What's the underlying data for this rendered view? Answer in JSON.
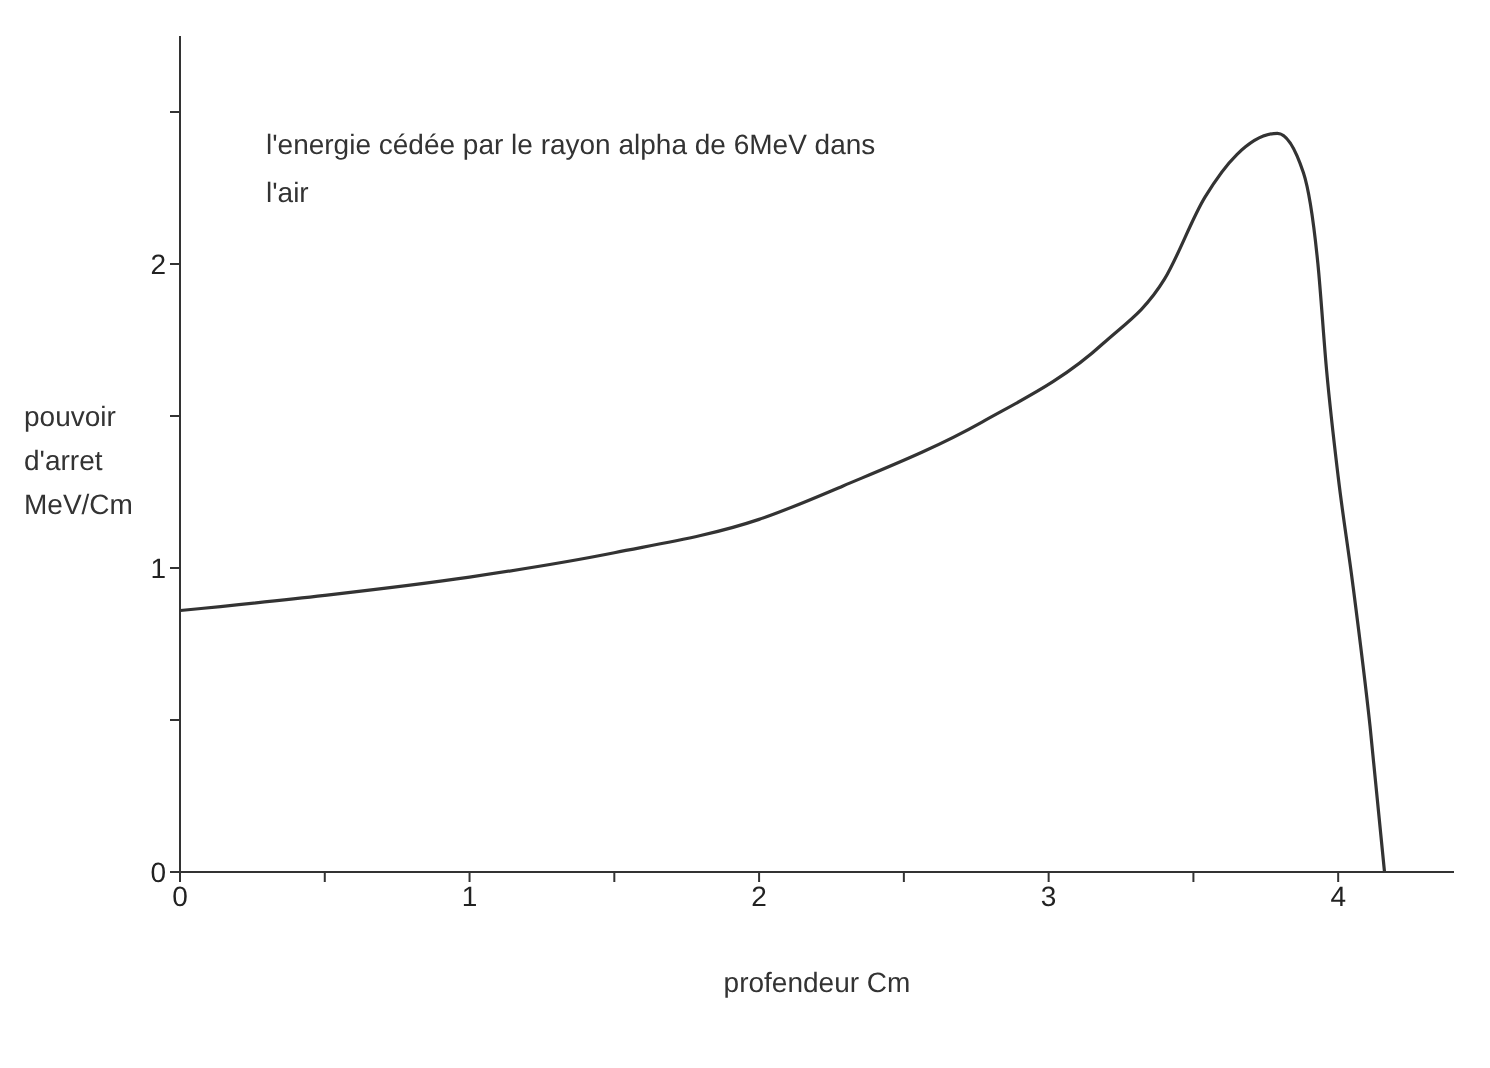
{
  "chart_data": {
    "type": "line",
    "annotations": [
      "l'energie cédée par le rayon alpha de 6MeV dans l'air"
    ],
    "xlabel": "profendeur Cm",
    "ylabel": "pouvoir d'arret MeV/Cm",
    "x": [
      0,
      0.5,
      1,
      1.5,
      2,
      2.29,
      2.77,
      3.19,
      3.4,
      3.54,
      3.65,
      3.79,
      3.88,
      3.93,
      3.96,
      4.0,
      4.05,
      4.11,
      4.16
    ],
    "series": [
      {
        "color": "#333333",
        "values": [
          0.86,
          0.91,
          0.97,
          1.05,
          1.16,
          1.27,
          1.48,
          1.74,
          1.95,
          2.22,
          2.36,
          2.43,
          2.3,
          2.0,
          1.65,
          1.3,
          0.95,
          0.48,
          0
        ]
      }
    ],
    "xlim": [
      0,
      4.4
    ],
    "ylim": [
      0,
      2.75
    ],
    "xticks": [
      0,
      {
        "value": 0.5,
        "label": null
      },
      1,
      {
        "value": 1.5,
        "label": null
      },
      2,
      {
        "value": 2.5,
        "label": null
      },
      3,
      {
        "value": 3.5,
        "label": null
      },
      4
    ],
    "yticks": [
      0,
      {
        "value": 0.5,
        "label": null
      },
      1,
      {
        "value": 1.5,
        "label": null
      },
      2,
      {
        "value": 2.5,
        "label": null
      }
    ],
    "grid": false,
    "legend": false,
    "marker": "none",
    "line_style": "solid"
  }
}
